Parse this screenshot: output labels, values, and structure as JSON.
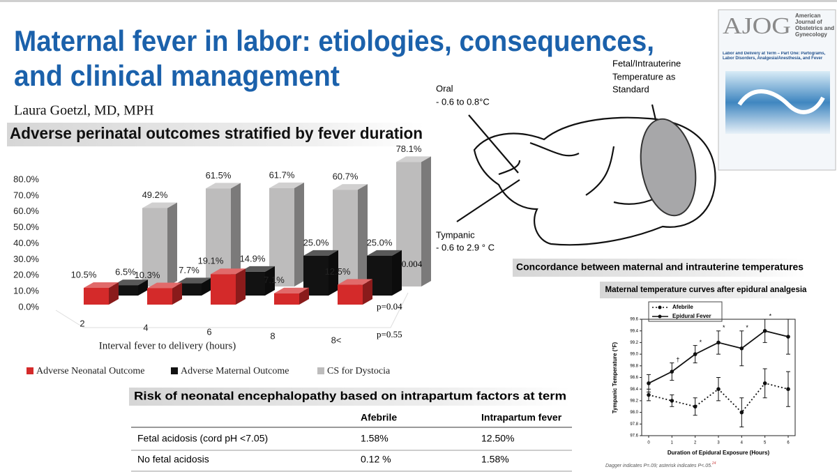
{
  "header": {
    "title_lines": [
      "Maternal fever in labor: etiologies, consequences,",
      "and clinical management"
    ],
    "author": "Laura Goetzl, MD, MPH"
  },
  "chart_data": [
    {
      "type": "bar",
      "title": "Adverse perinatal outcomes stratified by fever duration",
      "xlabel": "Interval fever to delivery (hours)",
      "categories": [
        "2",
        "4",
        "6",
        "8",
        "8<"
      ],
      "series": [
        {
          "name": "Adverse Neonatal Outcome",
          "color": "#d42a2a",
          "values": [
            10.5,
            10.3,
            19.1,
            7.1,
            12.5
          ],
          "value_labels": [
            "10.5%",
            "10.3%",
            "19.1%",
            "7.1%",
            "12.5%"
          ],
          "p_value": "p=0.55"
        },
        {
          "name": "Adverse Maternal Outcome",
          "color": "#121212",
          "values": [
            6.5,
            7.7,
            14.9,
            25.0,
            25.0
          ],
          "value_labels": [
            "6.5%",
            "7.7%",
            "14.9%",
            "25.0%",
            "25.0%"
          ],
          "p_value": "p=0.04"
        },
        {
          "name": "CS for Dystocia",
          "color": "#bdbcbc",
          "values": [
            49.2,
            61.5,
            61.7,
            60.7,
            78.1
          ],
          "value_labels": [
            "49.2%",
            "61.5%",
            "61.7%",
            "60.7%",
            "78.1%"
          ],
          "p_value": "p=0.004"
        }
      ],
      "ylim": [
        0,
        80
      ],
      "yticks": [
        {
          "value": 0,
          "label": "0.0%"
        },
        {
          "value": 10,
          "label": "10.0%"
        },
        {
          "value": 20,
          "label": "20.0%"
        },
        {
          "value": 30,
          "label": "30.0%"
        },
        {
          "value": 40,
          "label": "40.0%"
        },
        {
          "value": 50,
          "label": "50.0%"
        },
        {
          "value": 60,
          "label": "60.0%"
        },
        {
          "value": 70,
          "label": "70.0%"
        },
        {
          "value": 80,
          "label": "80.0%"
        }
      ]
    },
    {
      "type": "line",
      "title": "Maternal temperature curves after epidural analgesia",
      "xlabel": "Duration of Epidural Exposure (Hours)",
      "ylabel": "Tympanic Temperature (°F)",
      "x": [
        0,
        1,
        2,
        3,
        4,
        5,
        6
      ],
      "series": [
        {
          "name": "Afebrile",
          "color": "#111111",
          "dash": "dotted",
          "values": [
            98.3,
            98.2,
            98.1,
            98.4,
            98.0,
            98.5,
            98.4
          ],
          "errors": [
            0.1,
            0.1,
            0.15,
            0.2,
            0.25,
            0.25,
            0.3
          ]
        },
        {
          "name": "Epidural Fever",
          "color": "#111111",
          "dash": "solid",
          "values": [
            98.5,
            98.7,
            99.0,
            99.2,
            99.1,
            99.4,
            99.3
          ],
          "errors": [
            0.15,
            0.15,
            0.15,
            0.2,
            0.3,
            0.2,
            0.3
          ]
        }
      ],
      "markers": [
        null,
        "†",
        "*",
        "*",
        "*",
        "*",
        null
      ],
      "xlim": [
        -0.3,
        6.3
      ],
      "xticks": [
        0,
        1,
        2,
        3,
        4,
        5,
        6
      ],
      "ylim": [
        97.6,
        99.6
      ],
      "yticks": [
        97.6,
        97.8,
        {
          "value": 98.0,
          "label": "98.0"
        },
        98.2,
        98.4,
        98.6,
        98.8,
        {
          "value": 99.0,
          "label": "99.0"
        },
        99.2,
        99.4,
        99.6
      ],
      "footnote": "Dagger indicates P=.09; asterisk indicates P<.05.",
      "footnote_ref": "24"
    }
  ],
  "diagram": {
    "oral": "Oral",
    "oral_range": "- 0.6 to  0.8°C",
    "tympanic": "Tympanic",
    "tympanic_range": "- 0.6 to 2.9 ° C",
    "standard_lines": [
      "Fetal/Intrauterine",
      "Temperature as",
      "Standard"
    ],
    "concordance_title": "Concordance between maternal and intrauterine temperatures"
  },
  "cover": {
    "logo": "AJOG",
    "journal_lines": [
      "American",
      "Journal of",
      "Obstetrics and",
      "Gynecology"
    ],
    "headline": "Labor and Delivery at Term – Part One: Partograms, Labor Disorders, Analgesia/Anesthesia, and Fever"
  },
  "table": {
    "title": "Risk of neonatal encephalopathy based on intrapartum factors at term",
    "columns": [
      "Afebrile",
      "Intrapartum fever"
    ],
    "rows": [
      [
        "Fetal acidosis (cord pH <7.05)",
        "1.58%",
        "12.50%"
      ],
      [
        "No fetal acidosis",
        "0.12 %",
        "1.58%"
      ]
    ]
  }
}
